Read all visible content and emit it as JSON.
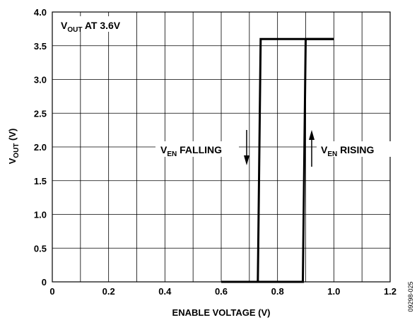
{
  "chart_data": {
    "type": "line",
    "title": "",
    "xlabel": "ENABLE VOLTAGE (V)",
    "ylabel": {
      "main": "V",
      "sub": "OUT",
      "rest": " (V)"
    },
    "xlim": [
      0,
      1.2
    ],
    "ylim": [
      0,
      4.0
    ],
    "x_ticks": [
      "0",
      "0.2",
      "0.4",
      "0.6",
      "0.8",
      "1.0",
      "1.2"
    ],
    "y_ticks": [
      "0",
      "0.5",
      "1.0",
      "1.5",
      "2.0",
      "2.5",
      "3.0",
      "3.5",
      "4.0"
    ],
    "grid": true,
    "series": [
      {
        "values": [
          [
            0.6,
            0
          ],
          [
            0.73,
            0
          ],
          [
            0.74,
            3.6
          ],
          [
            1.0,
            3.6
          ]
        ]
      },
      {
        "values": [
          [
            0.6,
            0
          ],
          [
            0.89,
            0
          ],
          [
            0.9,
            3.6
          ],
          [
            1.0,
            3.6
          ]
        ]
      }
    ],
    "annotations": {
      "condition": {
        "main": "V",
        "sub": "OUT",
        "rest": " AT 3.6V"
      },
      "falling": {
        "main": "V",
        "sub": "EN",
        "rest": " FALLING"
      },
      "rising": {
        "main": "V",
        "sub": "EN",
        "rest": " RISING"
      }
    },
    "figure_id": "09298-025"
  }
}
